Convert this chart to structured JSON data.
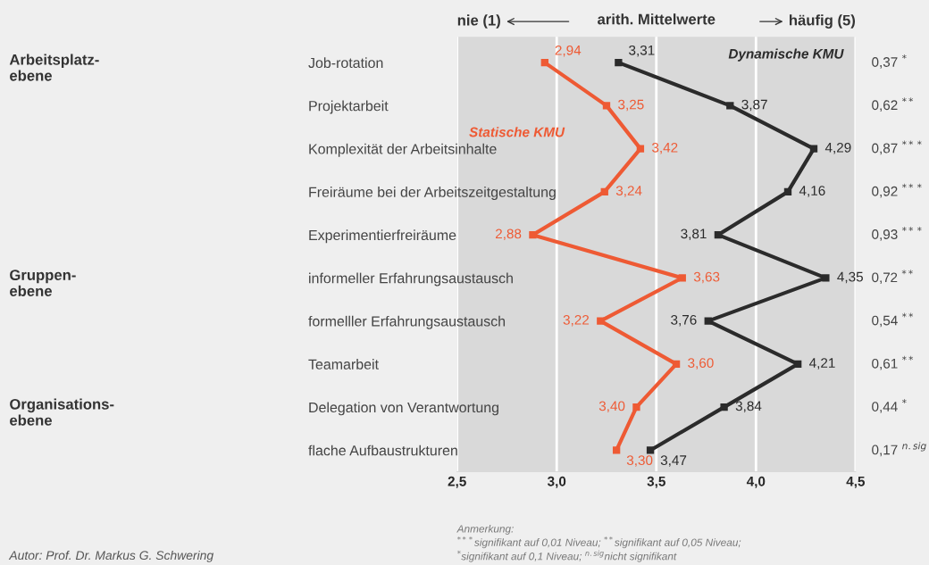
{
  "chart_data": {
    "type": "line",
    "orientation": "horizontal",
    "categories": [
      "Job-rotation",
      "Projektarbeit",
      "Komplexität der Arbeitsinhalte",
      "Freiräume bei der Arbeitszeitgestaltung",
      "Experimentierfreiräume",
      "informeller Erfahrungsaustausch",
      "formelller Erfahrungsaustausch",
      "Teamarbeit",
      "Delegation von Verantwortung",
      "flache Aufbaustrukturen"
    ],
    "xlabel": "arith. Mittelwerte",
    "series": [
      {
        "name": "Statische KMU",
        "color": "#ee5a34",
        "values": [
          2.94,
          3.25,
          3.42,
          3.24,
          2.88,
          3.63,
          3.22,
          3.6,
          3.4,
          3.3
        ],
        "value_labels": [
          "2,94",
          "3,25",
          "3,42",
          "3,24",
          "2,88",
          "3,63",
          "3,22",
          "3,60",
          "3,40",
          "3,30"
        ]
      },
      {
        "name": "Dynamische KMU",
        "color": "#2b2b2b",
        "values": [
          3.31,
          3.87,
          4.29,
          4.16,
          3.81,
          4.35,
          3.76,
          4.21,
          3.84,
          3.47
        ],
        "value_labels": [
          "3,31",
          "3,87",
          "4,29",
          "4,16",
          "3,81",
          "4,35",
          "3,76",
          "4,21",
          "3,84",
          "3,47"
        ]
      }
    ],
    "xlim": [
      2.5,
      4.5
    ],
    "xticks": [
      {
        "value": 2.5,
        "label": "2,5"
      },
      {
        "value": 3.0,
        "label": "3,0"
      },
      {
        "value": 3.5,
        "label": "3,5"
      },
      {
        "value": 4.0,
        "label": "4,0"
      },
      {
        "value": 4.5,
        "label": "4,5"
      }
    ],
    "grid": "x",
    "marker": "square",
    "line_style": "solid",
    "legend": false,
    "annotations": [
      "Arbeitsplatz-\nebene",
      "Gruppen-\nebene",
      "Organisations-\nebene",
      "Anmerkung:\n$^{***}$signifikant auf 0,01 Niveau; $^{**}$signifikant auf 0,05 Niveau;\n$^{*}$signifikant auf 0,1 Niveau; $^{n.sig}$nicht signifikant",
      "Autor: Prof. Dr. Markus G. Schwering",
      "nie (1)",
      "häufig (5)",
      "0,37 $^{*}$",
      "0,62 $^{**}$",
      "0,87 $^{***}$",
      "0,92 $^{***}$",
      "0,93 $^{***}$",
      "0,72 $^{**}$",
      "0,54 $^{**}$",
      "0,61 $^{**}$",
      "0,44 $^{*}$",
      "0,17 $^{n.sig}$"
    ]
  }
}
